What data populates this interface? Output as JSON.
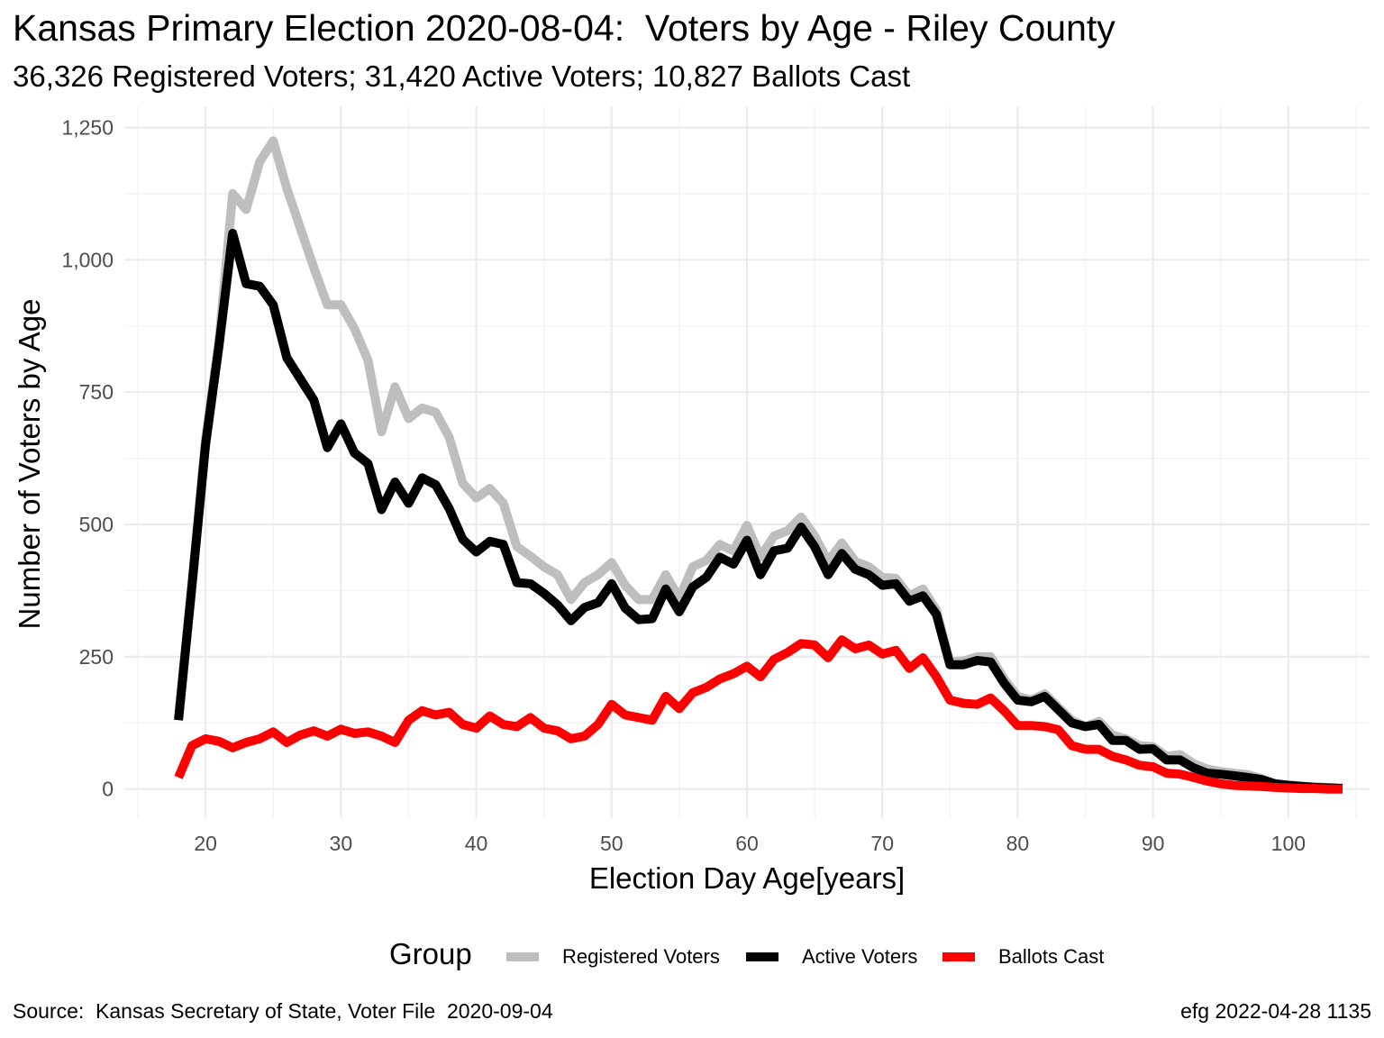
{
  "title": "Kansas Primary Election 2020-08-04:  Voters by Age - Riley County",
  "subtitle": "36,326 Registered Voters; 31,420 Active Voters; 10,827 Ballots Cast",
  "caption_left": "Source:  Kansas Secretary of State, Voter File  2020-09-04",
  "caption_right": "efg 2022-04-28 1135",
  "legend": {
    "title": "Group",
    "items": [
      {
        "label": "Registered Voters",
        "color": "#bebebe"
      },
      {
        "label": "Active Voters",
        "color": "#000000"
      },
      {
        "label": "Ballots Cast",
        "color": "#ff0000"
      }
    ]
  },
  "chart_data": {
    "type": "line",
    "xlabel": "Election Day Age[years]",
    "ylabel": "Number of Voters by Age",
    "xlim": [
      14,
      106
    ],
    "ylim": [
      -55,
      1290
    ],
    "x_ticks": [
      "20",
      "30",
      "40",
      "50",
      "60",
      "70",
      "80",
      "90",
      "100"
    ],
    "x_tick_values": [
      20,
      30,
      40,
      50,
      60,
      70,
      80,
      90,
      100
    ],
    "y_ticks": [
      "0",
      "250",
      "500",
      "750",
      "1,000",
      "1,250"
    ],
    "y_tick_values": [
      0,
      250,
      500,
      750,
      1000,
      1250
    ],
    "grid": true,
    "legend_position": "bottom",
    "x": [
      18,
      19,
      20,
      21,
      22,
      23,
      24,
      25,
      26,
      27,
      28,
      29,
      30,
      31,
      32,
      33,
      34,
      35,
      36,
      37,
      38,
      39,
      40,
      41,
      42,
      43,
      44,
      45,
      46,
      47,
      48,
      49,
      50,
      51,
      52,
      53,
      54,
      55,
      56,
      57,
      58,
      59,
      60,
      61,
      62,
      63,
      64,
      65,
      66,
      67,
      68,
      69,
      70,
      71,
      72,
      73,
      74,
      75,
      76,
      77,
      78,
      79,
      80,
      81,
      82,
      83,
      84,
      85,
      86,
      87,
      88,
      89,
      90,
      91,
      92,
      93,
      94,
      95,
      96,
      97,
      98,
      99,
      100,
      101,
      102,
      103,
      104
    ],
    "series": [
      {
        "name": "Registered Voters",
        "color": "#bebebe",
        "values": [
          135,
          390,
          660,
          850,
          1125,
          1095,
          1185,
          1225,
          1135,
          1060,
          985,
          915,
          915,
          870,
          810,
          675,
          760,
          700,
          720,
          712,
          665,
          578,
          550,
          568,
          540,
          458,
          440,
          420,
          405,
          358,
          390,
          405,
          428,
          385,
          358,
          358,
          405,
          360,
          420,
          432,
          462,
          450,
          498,
          438,
          478,
          488,
          514,
          478,
          430,
          465,
          430,
          420,
          400,
          398,
          365,
          378,
          338,
          240,
          242,
          250,
          250,
          208,
          175,
          168,
          180,
          155,
          130,
          118,
          128,
          102,
          95,
          82,
          80,
          62,
          65,
          48,
          38,
          33,
          30,
          27,
          20,
          10,
          8,
          6,
          4,
          3,
          2
        ]
      },
      {
        "name": "Active Voters",
        "color": "#000000",
        "values": [
          130,
          385,
          650,
          840,
          1050,
          955,
          950,
          915,
          815,
          775,
          735,
          645,
          690,
          635,
          615,
          528,
          580,
          540,
          588,
          575,
          530,
          472,
          448,
          468,
          462,
          390,
          388,
          370,
          348,
          318,
          343,
          352,
          388,
          342,
          320,
          322,
          378,
          335,
          382,
          400,
          438,
          425,
          470,
          405,
          450,
          455,
          495,
          458,
          405,
          445,
          415,
          405,
          385,
          388,
          355,
          365,
          330,
          235,
          235,
          243,
          240,
          200,
          168,
          165,
          175,
          150,
          125,
          118,
          122,
          92,
          92,
          75,
          76,
          55,
          55,
          40,
          30,
          28,
          25,
          22,
          18,
          10,
          7,
          5,
          3,
          2,
          1
        ]
      },
      {
        "name": "Ballots Cast",
        "color": "#ff0000",
        "values": [
          22,
          82,
          95,
          90,
          78,
          88,
          95,
          108,
          88,
          102,
          110,
          100,
          113,
          105,
          108,
          100,
          88,
          130,
          148,
          140,
          145,
          122,
          115,
          138,
          122,
          118,
          135,
          115,
          110,
          95,
          100,
          122,
          160,
          140,
          135,
          130,
          175,
          152,
          182,
          192,
          208,
          218,
          232,
          212,
          245,
          258,
          275,
          272,
          248,
          282,
          265,
          272,
          255,
          262,
          228,
          248,
          212,
          168,
          162,
          160,
          172,
          148,
          120,
          120,
          118,
          112,
          82,
          75,
          75,
          62,
          55,
          45,
          42,
          30,
          28,
          22,
          15,
          10,
          7,
          6,
          5,
          3,
          2,
          1,
          1,
          0,
          0
        ]
      }
    ]
  }
}
